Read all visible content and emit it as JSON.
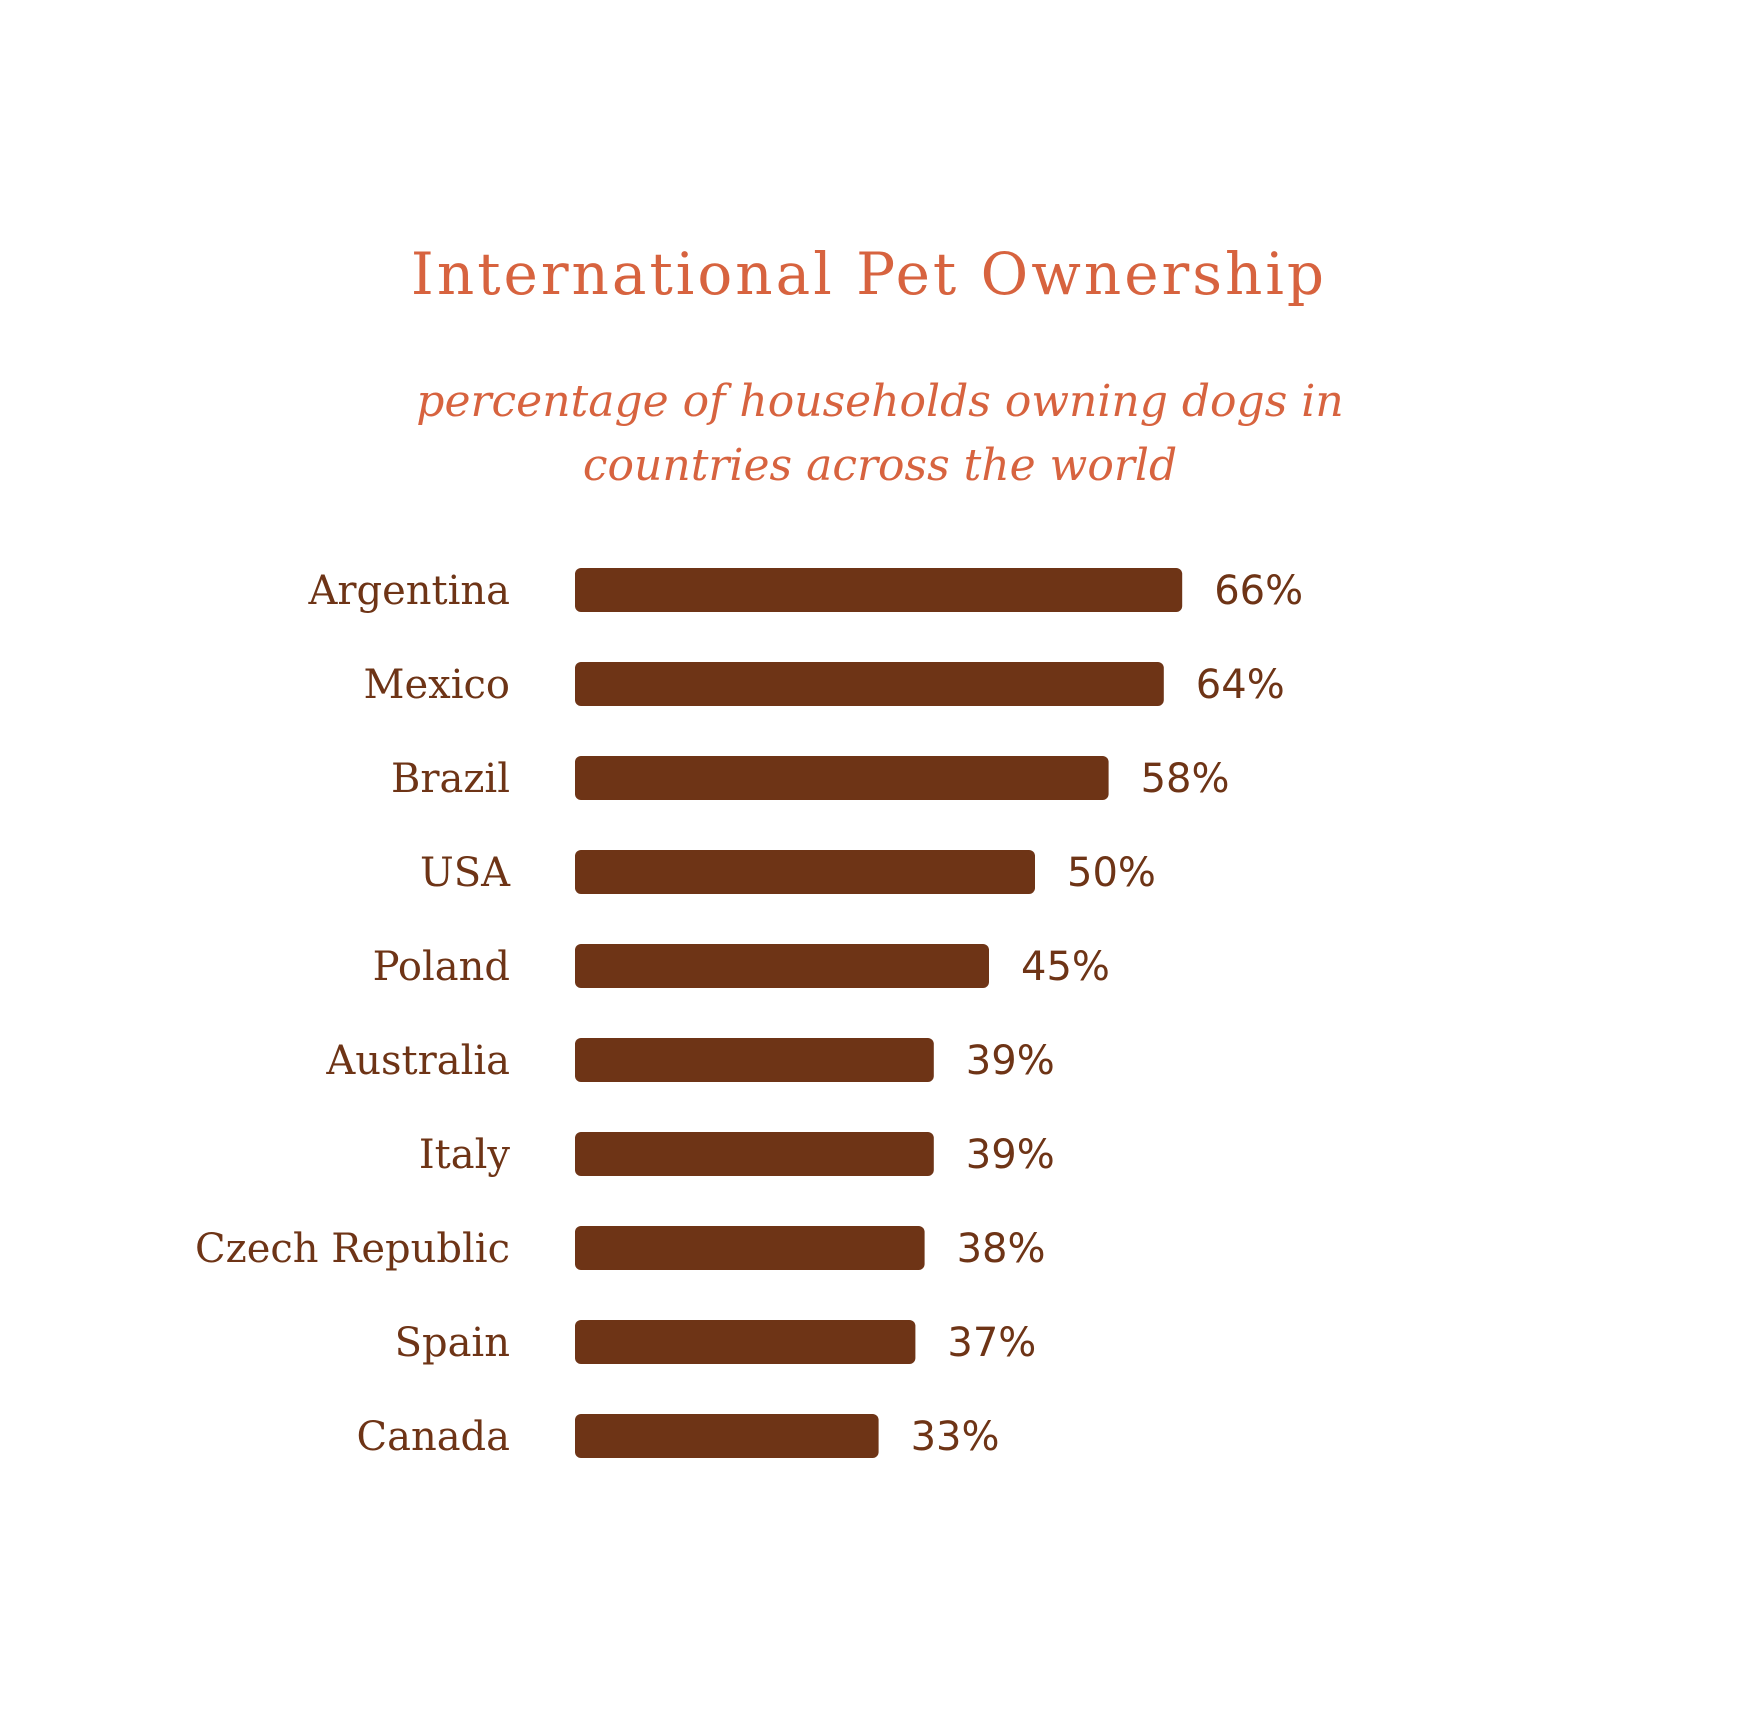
{
  "chart_data": {
    "type": "bar",
    "orientation": "horizontal",
    "title": "International Pet Ownership",
    "subtitle": "percentage of households owning dogs in countries across the world",
    "categories": [
      "Argentina",
      "Mexico",
      "Brazil",
      "USA",
      "Poland",
      "Australia",
      "Italy",
      "Czech Republic",
      "Spain",
      "Canada"
    ],
    "values": [
      66,
      64,
      58,
      50,
      45,
      39,
      39,
      38,
      37,
      33
    ],
    "value_labels": [
      "66%",
      "64%",
      "58%",
      "50%",
      "45%",
      "39%",
      "39%",
      "38%",
      "37%",
      "33%"
    ],
    "xlabel": "",
    "ylabel": "",
    "grid": false,
    "legend": "none",
    "colors": {
      "bar": "#6e3416",
      "text": "#6e3416",
      "title": "#d7633f",
      "background": "#ffffff"
    }
  }
}
